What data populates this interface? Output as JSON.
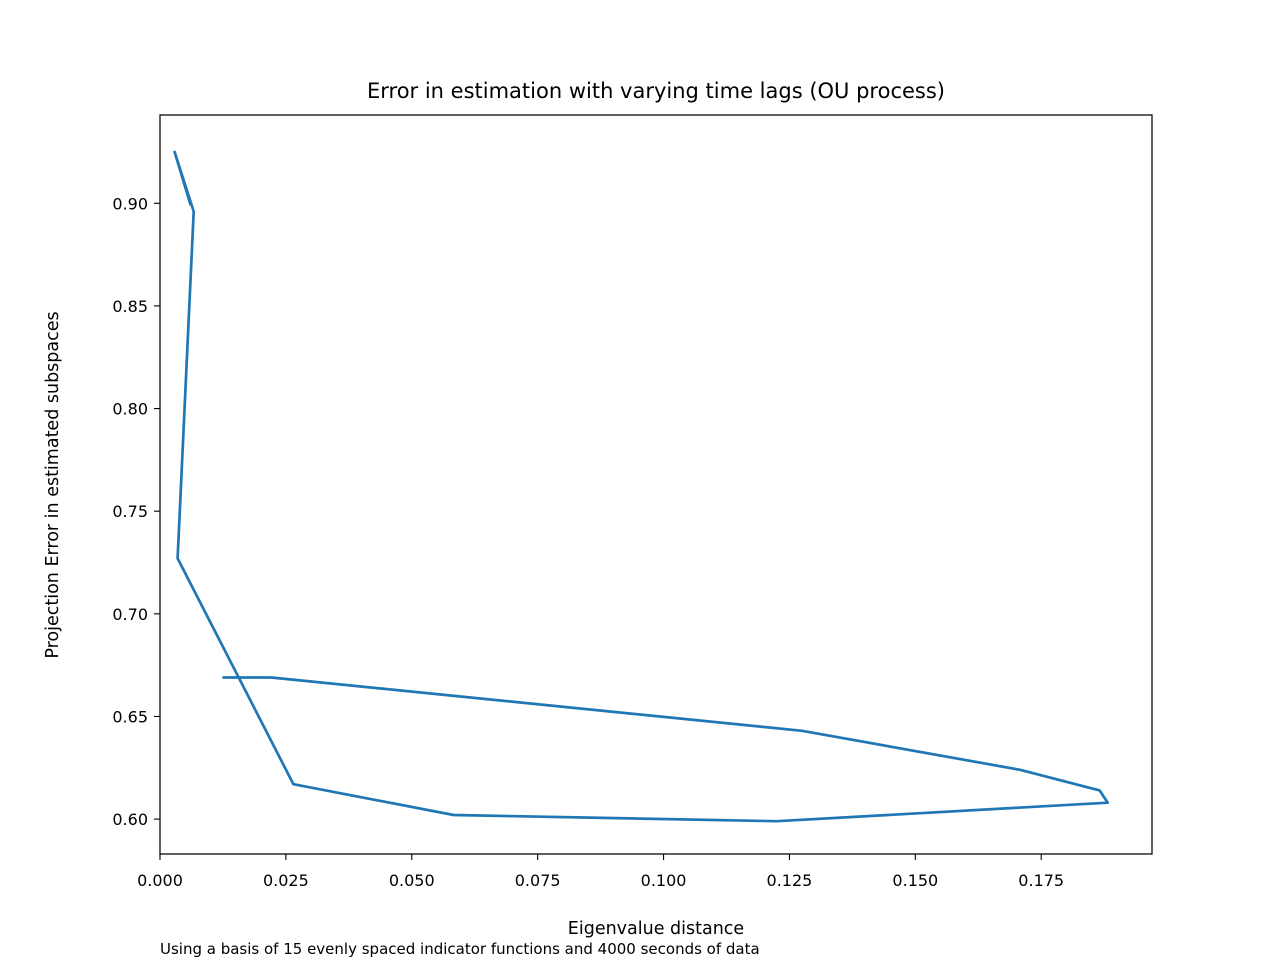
{
  "chart_data": {
    "type": "line",
    "title": "Error in estimation with varying time lags (OU process)",
    "xlabel": "Eigenvalue distance",
    "ylabel": "Projection Error in estimated subspaces",
    "xlim": [
      0.0,
      0.197
    ],
    "ylim": [
      0.583,
      0.943
    ],
    "xticks": [
      0.0,
      0.025,
      0.05,
      0.075,
      0.1,
      0.125,
      0.15,
      0.175
    ],
    "xtick_labels": [
      "0.000",
      "0.025",
      "0.050",
      "0.075",
      "0.100",
      "0.125",
      "0.150",
      "0.175"
    ],
    "yticks": [
      0.6,
      0.65,
      0.7,
      0.75,
      0.8,
      0.85,
      0.9
    ],
    "ytick_labels": [
      "0.60",
      "0.65",
      "0.70",
      "0.75",
      "0.80",
      "0.85",
      "0.90"
    ],
    "grid": false,
    "series": [
      {
        "color": "#1f77b4",
        "x": [
          0.0061,
          0.0029,
          0.0067,
          0.0035,
          0.0265,
          0.0583,
          0.1225,
          0.1882,
          0.1866,
          0.1708,
          0.1275,
          0.0221,
          0.0124
        ],
        "y": [
          0.899,
          0.925,
          0.896,
          0.727,
          0.617,
          0.602,
          0.599,
          0.608,
          0.614,
          0.624,
          0.643,
          0.669,
          0.669
        ]
      }
    ]
  },
  "caption": "Using a basis of 15 evenly spaced indicator functions and 4000 seconds of data"
}
